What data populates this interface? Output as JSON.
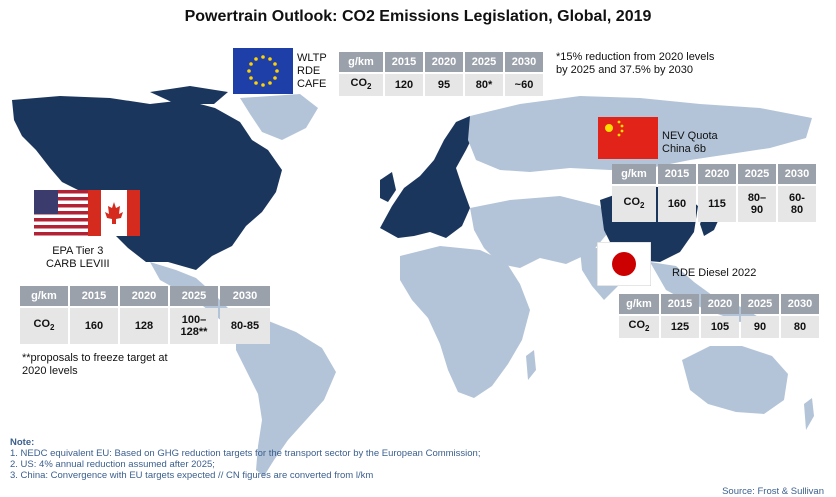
{
  "title": "Powertrain Outlook: CO2 Emissions Legislation, Global, 2019",
  "eu": {
    "standards": [
      "WLTP",
      "RDE",
      "CAFE"
    ],
    "header": [
      "g/km",
      "2015",
      "2020",
      "2025",
      "2030"
    ],
    "row_label": "CO",
    "row_label_sub": "2",
    "values": [
      "120",
      "95",
      "80*",
      "~60"
    ],
    "footnote": [
      "*15% reduction from 2020 levels",
      "by 2025 and 37.5% by 2030"
    ]
  },
  "china": {
    "standards": [
      "NEV Quota",
      "China 6b"
    ],
    "header": [
      "g/km",
      "2015",
      "2020",
      "2025",
      "2030"
    ],
    "row_label": "CO",
    "row_label_sub": "2",
    "values": [
      "160",
      "115",
      "80–\n90",
      "60-\n80"
    ]
  },
  "japan": {
    "standards": [
      "RDE Diesel 2022"
    ],
    "header": [
      "g/km",
      "2015",
      "2020",
      "2025",
      "2030"
    ],
    "row_label": "CO",
    "row_label_sub": "2",
    "values": [
      "125",
      "105",
      "90",
      "80"
    ]
  },
  "us": {
    "standards": [
      "EPA Tier 3",
      "CARB LEVIII"
    ],
    "header": [
      "g/km",
      "2015",
      "2020",
      "2025",
      "2030"
    ],
    "row_label": "CO",
    "row_label_sub": "2",
    "values": [
      "160",
      "128",
      "100–\n128**",
      "80-85"
    ],
    "footnote": [
      "**proposals to freeze target at",
      "2020 levels"
    ]
  },
  "notes": {
    "heading": "Note:",
    "items": [
      "1.    NEDC equivalent EU: Based on GHG reduction targets for the transport sector by the European Commission;",
      "2.    US: 4% annual reduction assumed after 2025;",
      "3.    China: Convergence with EU targets expected // CN figures are converted from l/km"
    ]
  },
  "source": "Source: Frost & Sullivan",
  "colors": {
    "map_land": "#b3c4d8",
    "map_highlight": "#1b365d",
    "table_header": "#9aa1ab",
    "table_cell": "#e6e6e6",
    "note_text": "#3b5f8e"
  }
}
